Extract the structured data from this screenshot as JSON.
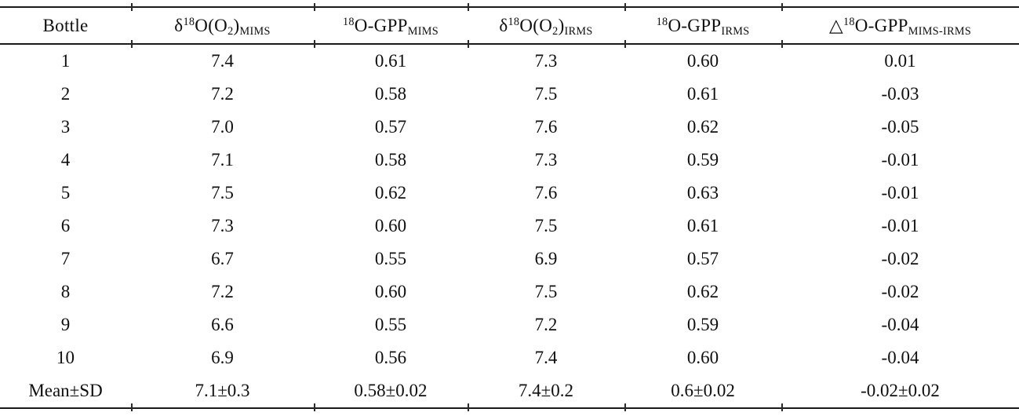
{
  "table": {
    "description": "Comparison of MIMS and IRMS oxygen isotope measurements per bottle",
    "colors": {
      "text": "#0f0f0f",
      "rule": "#1a1a1a",
      "background": "#ffffff"
    },
    "columns": [
      {
        "name": "bottle",
        "segments": [
          {
            "t": "Bottle"
          }
        ]
      },
      {
        "name": "d18O-O2-MIMS",
        "segments": [
          {
            "t": "δ"
          },
          {
            "t": "18",
            "s": "sup"
          },
          {
            "t": "O(O"
          },
          {
            "t": "2",
            "s": "sub"
          },
          {
            "t": ")"
          },
          {
            "t": "MIMS",
            "s": "sub"
          }
        ]
      },
      {
        "name": "18O-GPP-MIMS",
        "segments": [
          {
            "t": "18",
            "s": "sup"
          },
          {
            "t": "O-GPP"
          },
          {
            "t": "MIMS",
            "s": "sub"
          }
        ]
      },
      {
        "name": "d18O-O2-IRMS",
        "segments": [
          {
            "t": "δ"
          },
          {
            "t": "18",
            "s": "sup"
          },
          {
            "t": "O(O"
          },
          {
            "t": "2",
            "s": "sub"
          },
          {
            "t": ")"
          },
          {
            "t": "IRMS",
            "s": "sub"
          }
        ]
      },
      {
        "name": "18O-GPP-IRMS",
        "segments": [
          {
            "t": "18",
            "s": "sup"
          },
          {
            "t": "O-GPP"
          },
          {
            "t": "IRMS",
            "s": "sub"
          }
        ]
      },
      {
        "name": "delta-18O-GPP-MIMS-IRMS",
        "segments": [
          {
            "t": "△"
          },
          {
            "t": "18",
            "s": "sup"
          },
          {
            "t": "O-GPP"
          },
          {
            "t": "MIMS-IRMS",
            "s": "sub"
          }
        ]
      }
    ],
    "rows": [
      [
        "1",
        "7.4",
        "0.61",
        "7.3",
        "0.60",
        "0.01"
      ],
      [
        "2",
        "7.2",
        "0.58",
        "7.5",
        "0.61",
        "-0.03"
      ],
      [
        "3",
        "7.0",
        "0.57",
        "7.6",
        "0.62",
        "-0.05"
      ],
      [
        "4",
        "7.1",
        "0.58",
        "7.3",
        "0.59",
        "-0.01"
      ],
      [
        "5",
        "7.5",
        "0.62",
        "7.6",
        "0.63",
        "-0.01"
      ],
      [
        "6",
        "7.3",
        "0.60",
        "7.5",
        "0.61",
        "-0.01"
      ],
      [
        "7",
        "6.7",
        "0.55",
        "6.9",
        "0.57",
        "-0.02"
      ],
      [
        "8",
        "7.2",
        "0.60",
        "7.5",
        "0.62",
        "-0.02"
      ],
      [
        "9",
        "6.6",
        "0.55",
        "7.2",
        "0.59",
        "-0.04"
      ],
      [
        "10",
        "6.9",
        "0.56",
        "7.4",
        "0.60",
        "-0.04"
      ],
      [
        "Mean±SD",
        "7.1±0.3",
        "0.58±0.02",
        "7.4±0.2",
        "0.6±0.02",
        "-0.02±0.02"
      ]
    ]
  }
}
